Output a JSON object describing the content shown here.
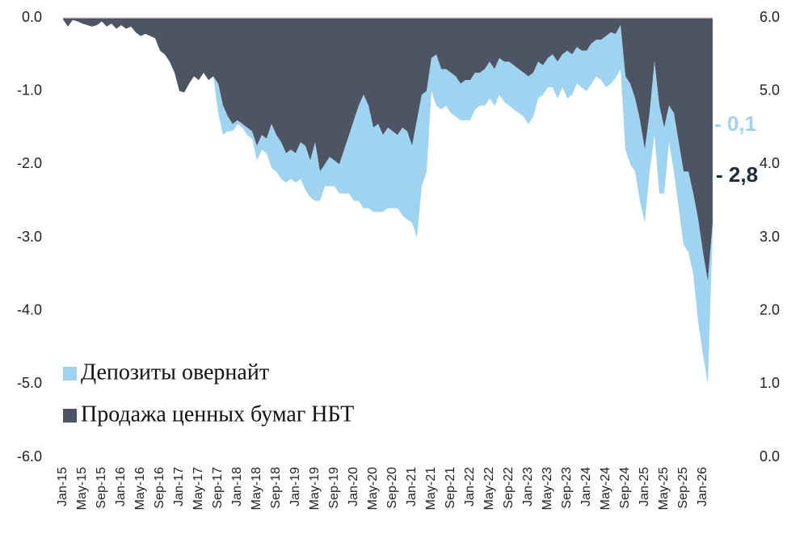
{
  "chart_data": {
    "type": "stacked_area",
    "categories": [
      "Jan-15",
      null,
      null,
      null,
      "May-15",
      null,
      null,
      null,
      "Sep-15",
      null,
      null,
      null,
      "Jan-16",
      null,
      null,
      null,
      "May-16",
      null,
      null,
      null,
      "Sep-16",
      null,
      null,
      null,
      "Jan-17",
      null,
      null,
      null,
      "May-17",
      null,
      null,
      null,
      "Sep-17",
      null,
      null,
      null,
      "Jan-18",
      null,
      null,
      null,
      "May-18",
      null,
      null,
      null,
      "Sep-18",
      null,
      null,
      null,
      "Jan-19",
      null,
      null,
      null,
      "May-19",
      null,
      null,
      null,
      "Sep-19",
      null,
      null,
      null,
      "Jan-20",
      null,
      null,
      null,
      "May-20",
      null,
      null,
      null,
      "Sep-20",
      null,
      null,
      null,
      "Jan-21",
      null,
      null,
      null,
      "May-21",
      null,
      null,
      null,
      "Sep-21",
      null,
      null,
      null,
      "Jan-22",
      null,
      null,
      null,
      "May-22",
      null,
      null,
      null,
      "Sep-22",
      null,
      null,
      null,
      "Jan-23",
      null,
      null,
      null,
      "May-23",
      null,
      null,
      null,
      "Sep-23",
      null,
      null,
      null,
      "Jan-24",
      null,
      null,
      null,
      "May-24",
      null,
      null,
      null,
      "Sep-24",
      null,
      null,
      null,
      "Jan-25",
      null,
      null,
      null,
      "May-25",
      null,
      null,
      null,
      "Sep-25",
      null,
      null,
      null,
      "Jan-26",
      null,
      null
    ],
    "series": [
      {
        "name": "Продажа ценных бумаг НБТ",
        "color": "#4d5564",
        "values": [
          -0.02,
          -0.12,
          -0.03,
          -0.05,
          -0.08,
          -0.1,
          -0.12,
          -0.1,
          -0.05,
          -0.12,
          -0.08,
          -0.15,
          -0.1,
          -0.15,
          -0.12,
          -0.2,
          -0.25,
          -0.22,
          -0.25,
          -0.28,
          -0.45,
          -0.5,
          -0.6,
          -0.75,
          -1.0,
          -1.02,
          -0.9,
          -0.8,
          -0.85,
          -0.75,
          -0.85,
          -0.8,
          -0.9,
          -1.2,
          -1.35,
          -1.45,
          -1.4,
          -1.45,
          -1.5,
          -1.55,
          -1.75,
          -1.6,
          -1.65,
          -1.45,
          -1.6,
          -1.7,
          -1.85,
          -1.8,
          -1.85,
          -1.7,
          -1.75,
          -1.95,
          -1.7,
          -2.1,
          -2.0,
          -1.9,
          -1.95,
          -2.0,
          -1.8,
          -1.6,
          -1.4,
          -1.2,
          -1.05,
          -1.2,
          -1.5,
          -1.45,
          -1.6,
          -1.5,
          -1.55,
          -1.6,
          -1.5,
          -1.55,
          -1.75,
          -1.4,
          -1.05,
          -1.0,
          -0.55,
          -0.5,
          -0.7,
          -0.7,
          -0.75,
          -0.8,
          -0.9,
          -0.85,
          -0.85,
          -0.75,
          -0.75,
          -0.7,
          -0.6,
          -0.7,
          -0.55,
          -0.6,
          -0.6,
          -0.65,
          -0.7,
          -0.75,
          -0.8,
          -0.75,
          -0.6,
          -0.65,
          -0.55,
          -0.5,
          -0.6,
          -0.5,
          -0.45,
          -0.5,
          -0.4,
          -0.45,
          -0.45,
          -0.35,
          -0.3,
          -0.3,
          -0.25,
          -0.2,
          -0.22,
          -0.1,
          -0.8,
          -0.9,
          -1.1,
          -1.4,
          -1.8,
          -1.3,
          -0.6,
          -1.2,
          -1.5,
          -1.2,
          -1.3,
          -1.7,
          -2.1,
          -2.1,
          -2.4,
          -2.75,
          -3.2,
          -3.6,
          -2.8
        ]
      },
      {
        "name": "Депозиты овернайт",
        "color": "#9fd3ef",
        "values": [
          0,
          0,
          0,
          0,
          0,
          0,
          0,
          0,
          0,
          0,
          0,
          0,
          0,
          0,
          0,
          0,
          0,
          0,
          0,
          0,
          0,
          0,
          0,
          0,
          0,
          0,
          0,
          0,
          0,
          0,
          0,
          0,
          -0.4,
          -0.4,
          -0.2,
          -0.1,
          -0.05,
          -0.05,
          -0.1,
          -0.1,
          -0.2,
          -0.2,
          -0.2,
          -0.6,
          -0.5,
          -0.5,
          -0.4,
          -0.4,
          -0.4,
          -0.5,
          -0.6,
          -0.5,
          -0.8,
          -0.4,
          -0.3,
          -0.4,
          -0.35,
          -0.4,
          -0.6,
          -0.8,
          -1.1,
          -1.3,
          -1.55,
          -1.4,
          -1.15,
          -1.2,
          -1.05,
          -1.1,
          -1.05,
          -1.0,
          -1.2,
          -1.2,
          -1.05,
          -1.6,
          -1.25,
          -1.1,
          -0.45,
          -0.7,
          -0.55,
          -0.5,
          -0.55,
          -0.55,
          -0.5,
          -0.55,
          -0.55,
          -0.5,
          -0.45,
          -0.5,
          -0.5,
          -0.5,
          -0.5,
          -0.55,
          -0.6,
          -0.6,
          -0.6,
          -0.6,
          -0.65,
          -0.6,
          -0.5,
          -0.4,
          -0.4,
          -0.45,
          -0.5,
          -0.45,
          -0.65,
          -0.55,
          -0.5,
          -0.5,
          -0.55,
          -0.55,
          -0.5,
          -0.55,
          -0.7,
          -0.7,
          -0.6,
          -0.6,
          -1.0,
          -1.1,
          -1.0,
          -1.1,
          -1.0,
          -0.8,
          -1.0,
          -1.2,
          -0.9,
          -0.5,
          -0.8,
          -0.9,
          -1.0,
          -1.1,
          -1.1,
          -1.4,
          -1.4,
          -1.4,
          -0.1
        ]
      }
    ],
    "ylim": [
      -6,
      0
    ],
    "yticks": [
      {
        "value": 0,
        "label": "0.0"
      },
      {
        "value": -1,
        "label": "-1.0"
      },
      {
        "value": -2,
        "label": "-2.0"
      },
      {
        "value": -3,
        "label": "-3.0"
      },
      {
        "value": -4,
        "label": "-4.0"
      },
      {
        "value": -5,
        "label": "-5.0"
      },
      {
        "value": -6,
        "label": "-6.0"
      }
    ],
    "y2lim": [
      0,
      6
    ],
    "y2ticks": [
      {
        "value": 0,
        "label": "0.0"
      },
      {
        "value": 1,
        "label": "1.0"
      },
      {
        "value": 2,
        "label": "2.0"
      },
      {
        "value": 3,
        "label": "3.0"
      },
      {
        "value": 4,
        "label": "4.0"
      },
      {
        "value": 5,
        "label": "5.0"
      },
      {
        "value": 6,
        "label": "6.0"
      }
    ],
    "annotations": [
      "- 0,1",
      "- 2,8"
    ],
    "legend": "lower-left"
  }
}
